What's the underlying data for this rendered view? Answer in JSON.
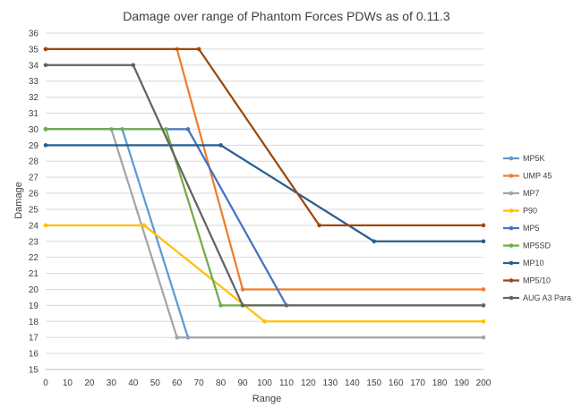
{
  "chart_data": {
    "type": "line",
    "title": "Damage over range of Phantom Forces PDWs as of 0.11.3",
    "xlabel": "Range",
    "ylabel": "Damage",
    "xlim": [
      0,
      200
    ],
    "ylim": [
      15,
      36
    ],
    "x_ticks": [
      0,
      10,
      20,
      30,
      40,
      50,
      60,
      70,
      80,
      90,
      100,
      110,
      120,
      130,
      140,
      150,
      160,
      170,
      180,
      190,
      200
    ],
    "y_ticks": [
      15,
      16,
      17,
      18,
      19,
      20,
      21,
      22,
      23,
      24,
      25,
      26,
      27,
      28,
      29,
      30,
      31,
      32,
      33,
      34,
      35,
      36
    ],
    "grid": "horizontal",
    "legend_position": "right",
    "series": [
      {
        "name": "MP5K",
        "color": "#5B9BD5",
        "points": [
          [
            0,
            30
          ],
          [
            35,
            30
          ],
          [
            65,
            17
          ]
        ]
      },
      {
        "name": "UMP 45",
        "color": "#ED7D31",
        "points": [
          [
            0,
            35
          ],
          [
            60,
            35
          ],
          [
            90,
            20
          ],
          [
            200,
            20
          ]
        ]
      },
      {
        "name": "MP7",
        "color": "#A5A5A5",
        "points": [
          [
            0,
            30
          ],
          [
            30,
            30
          ],
          [
            60,
            17
          ],
          [
            200,
            17
          ]
        ]
      },
      {
        "name": "P90",
        "color": "#FFC000",
        "points": [
          [
            0,
            24
          ],
          [
            45,
            24
          ],
          [
            100,
            18
          ],
          [
            200,
            18
          ]
        ]
      },
      {
        "name": "MP5",
        "color": "#4472C4",
        "points": [
          [
            0,
            30
          ],
          [
            65,
            30
          ],
          [
            110,
            19
          ]
        ]
      },
      {
        "name": "MP5SD",
        "color": "#70AD47",
        "points": [
          [
            0,
            30
          ],
          [
            55,
            30
          ],
          [
            80,
            19
          ],
          [
            200,
            19
          ]
        ]
      },
      {
        "name": "MP10",
        "color": "#255E91",
        "points": [
          [
            0,
            29
          ],
          [
            80,
            29
          ],
          [
            150,
            23
          ],
          [
            200,
            23
          ]
        ]
      },
      {
        "name": "MP5/10",
        "color": "#9E480E",
        "points": [
          [
            0,
            35
          ],
          [
            70,
            35
          ],
          [
            125,
            24
          ],
          [
            200,
            24
          ]
        ]
      },
      {
        "name": "AUG A3 Para",
        "color": "#636363",
        "points": [
          [
            0,
            34
          ],
          [
            40,
            34
          ],
          [
            90,
            19
          ],
          [
            200,
            19
          ]
        ]
      }
    ]
  }
}
